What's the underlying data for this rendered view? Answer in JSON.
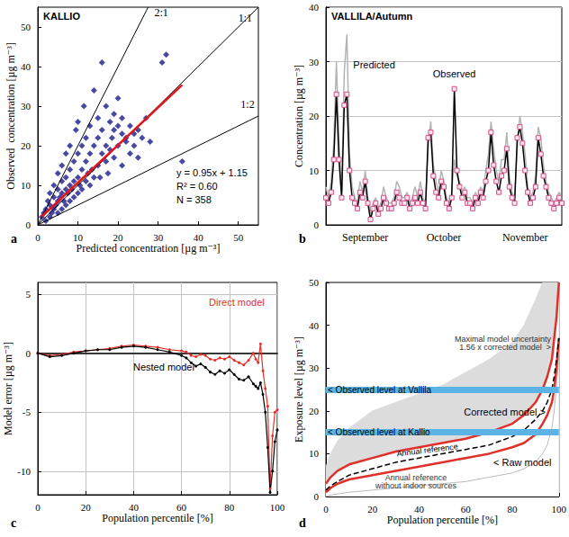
{
  "chart_data": [
    {
      "type": "scatter",
      "title": "KALLIO",
      "panel_label": "a",
      "x_label": "Predicted concentration [µg m⁻³]",
      "y_label": "Observed  concentration [µg m⁻³]",
      "xlim": [
        0,
        55
      ],
      "ylim": [
        0,
        55
      ],
      "xticks": [
        0,
        10,
        20,
        30,
        40,
        50
      ],
      "yticks": [
        0,
        10,
        20,
        30,
        40,
        50
      ],
      "grid": false,
      "points": {
        "marker": "diamond",
        "color": "#1c1c8a",
        "values": [
          [
            1,
            2
          ],
          [
            1.5,
            3
          ],
          [
            2,
            1
          ],
          [
            2,
            4
          ],
          [
            2.5,
            6
          ],
          [
            3,
            2
          ],
          [
            3,
            5
          ],
          [
            3,
            8
          ],
          [
            3.5,
            3
          ],
          [
            4,
            4
          ],
          [
            4,
            7
          ],
          [
            4,
            10
          ],
          [
            4.5,
            5
          ],
          [
            5,
            3
          ],
          [
            5,
            6
          ],
          [
            5,
            9
          ],
          [
            5,
            13
          ],
          [
            5.5,
            7
          ],
          [
            6,
            4
          ],
          [
            6,
            8
          ],
          [
            6,
            11
          ],
          [
            6,
            15
          ],
          [
            6.5,
            6
          ],
          [
            7,
            5
          ],
          [
            7,
            9
          ],
          [
            7,
            12
          ],
          [
            7,
            18
          ],
          [
            7.5,
            8
          ],
          [
            8,
            6
          ],
          [
            8,
            10
          ],
          [
            8,
            14
          ],
          [
            8,
            20
          ],
          [
            8.5,
            9
          ],
          [
            9,
            7
          ],
          [
            9,
            11
          ],
          [
            9,
            16
          ],
          [
            9.5,
            24
          ],
          [
            10,
            8
          ],
          [
            10,
            12
          ],
          [
            10,
            18
          ],
          [
            10,
            26
          ],
          [
            10.5,
            10
          ],
          [
            11,
            9
          ],
          [
            11,
            14
          ],
          [
            11,
            20
          ],
          [
            11.5,
            30
          ],
          [
            12,
            11
          ],
          [
            12,
            16
          ],
          [
            12,
            22
          ],
          [
            12.5,
            13
          ],
          [
            13,
            10
          ],
          [
            13,
            18
          ],
          [
            13,
            25
          ],
          [
            13.5,
            14
          ],
          [
            14,
            12
          ],
          [
            14,
            20
          ],
          [
            14,
            34
          ],
          [
            15,
            15
          ],
          [
            15,
            22
          ],
          [
            15,
            27
          ],
          [
            15.5,
            12
          ],
          [
            16,
            18
          ],
          [
            16,
            24
          ],
          [
            16,
            41
          ],
          [
            17,
            16
          ],
          [
            17,
            20
          ],
          [
            17,
            30
          ],
          [
            17.5,
            13
          ],
          [
            18,
            19
          ],
          [
            18,
            26
          ],
          [
            18.5,
            22
          ],
          [
            19,
            17
          ],
          [
            19,
            24
          ],
          [
            19,
            28
          ],
          [
            20,
            20
          ],
          [
            20,
            25
          ],
          [
            20,
            32
          ],
          [
            21,
            15
          ],
          [
            21,
            23
          ],
          [
            21,
            27
          ],
          [
            22,
            22
          ],
          [
            22,
            21
          ],
          [
            23,
            18
          ],
          [
            23,
            25
          ],
          [
            24,
            20
          ],
          [
            24,
            23
          ],
          [
            25,
            17
          ],
          [
            25,
            24
          ],
          [
            26,
            22
          ],
          [
            27,
            27
          ],
          [
            28,
            21
          ],
          [
            31,
            41
          ],
          [
            32,
            43
          ],
          [
            36,
            16
          ]
        ]
      },
      "reference_lines": [
        {
          "label": "2:1",
          "x": [
            0,
            27.5
          ],
          "y": [
            0,
            55
          ],
          "color": "#000000"
        },
        {
          "label": "1:1",
          "x": [
            0,
            55
          ],
          "y": [
            0,
            55
          ],
          "color": "#000000"
        },
        {
          "label": "1:2",
          "x": [
            0,
            55
          ],
          "y": [
            0,
            27.5
          ],
          "color": "#000000"
        }
      ],
      "fit": {
        "label": "y = 0.95x + 1.15",
        "x": [
          1,
          36
        ],
        "y": [
          2.1,
          35.35
        ],
        "color": "#e3141c"
      },
      "annotations": [
        "R² = 0.60",
        "N = 358"
      ]
    },
    {
      "type": "line",
      "title": "VALLILA/Autumn",
      "panel_label": "b",
      "y_label": "Concentration [µg m⁻³]",
      "categories": [
        null,
        null,
        null,
        null,
        null,
        null,
        null,
        null,
        null,
        null,
        null,
        null,
        null,
        null,
        null,
        "September",
        null,
        null,
        null,
        null,
        null,
        null,
        null,
        null,
        null,
        null,
        null,
        null,
        null,
        null,
        null,
        null,
        null,
        null,
        null,
        null,
        null,
        null,
        null,
        null,
        null,
        null,
        null,
        null,
        null,
        "October",
        null,
        null,
        null,
        null,
        null,
        null,
        null,
        null,
        null,
        null,
        null,
        null,
        null,
        null,
        null,
        null,
        null,
        null,
        null,
        null,
        null,
        null,
        null,
        null,
        null,
        null,
        null,
        null,
        null,
        null,
        "November",
        null,
        null,
        null,
        null,
        null,
        null,
        null,
        null,
        null,
        null,
        null,
        null,
        null,
        null
      ],
      "ylim": [
        0,
        40
      ],
      "yticks": [
        0,
        10,
        20,
        30,
        40
      ],
      "grid": true,
      "series": [
        {
          "name": "Predicted",
          "color": "#b4b4b4",
          "values": [
            7,
            5,
            8,
            15,
            30,
            15,
            6,
            28,
            35,
            13,
            7,
            5,
            4,
            8,
            6,
            10,
            5,
            2,
            4,
            5,
            3,
            4,
            7,
            5,
            4,
            4,
            5,
            8,
            7,
            5,
            5,
            6,
            4,
            5,
            7,
            5,
            8,
            5,
            4,
            14,
            19,
            11,
            8,
            6,
            10,
            8,
            5,
            4,
            6,
            12,
            9,
            8,
            6,
            7,
            5,
            5,
            4,
            6,
            5,
            7,
            6,
            10,
            13,
            19,
            14,
            10,
            8,
            12,
            12,
            17,
            9,
            6,
            5,
            14,
            20,
            17,
            13,
            7,
            5,
            6,
            9,
            18,
            16,
            11,
            8,
            6,
            5,
            4,
            5,
            6,
            5
          ]
        },
        {
          "name": "Observed",
          "color": "#000000",
          "marker": "square",
          "values": [
            5,
            4,
            6,
            12,
            24,
            12,
            5,
            22,
            24,
            10,
            5,
            4,
            3,
            6,
            5,
            8,
            4,
            1,
            3,
            4,
            2,
            3,
            5,
            4,
            3,
            3,
            4,
            6,
            5,
            4,
            4,
            5,
            3,
            4,
            5,
            4,
            6,
            4,
            3,
            16,
            17,
            9,
            6,
            5,
            8,
            7,
            4,
            3,
            5,
            25,
            10,
            7,
            5,
            6,
            4,
            4,
            3,
            5,
            4,
            6,
            5,
            8,
            10,
            17,
            11,
            8,
            6,
            9,
            10,
            14,
            7,
            5,
            4,
            16,
            18,
            15,
            10,
            6,
            4,
            5,
            7,
            16,
            13,
            9,
            7,
            5,
            4,
            3,
            4,
            5,
            4
          ]
        }
      ]
    },
    {
      "type": "line",
      "panel_label": "c",
      "x_label": "Population percentile [%]",
      "y_label": "Model error [µg m⁻³]",
      "x": [
        0,
        5,
        10,
        15,
        20,
        25,
        30,
        35,
        40,
        45,
        50,
        55,
        60,
        62,
        64,
        66,
        68,
        70,
        72,
        74,
        76,
        78,
        80,
        82,
        84,
        86,
        88,
        90,
        91,
        92,
        93,
        94,
        95,
        96,
        97,
        98,
        99,
        100
      ],
      "xlim": [
        0,
        100
      ],
      "ylim": [
        -12,
        6
      ],
      "xticks": [
        0,
        20,
        40,
        60,
        80,
        100
      ],
      "yticks": [
        -10,
        -5,
        0,
        5
      ],
      "grid": true,
      "series": [
        {
          "name": "Direct model",
          "color": "#e0302a",
          "marker": "circle",
          "values": [
            0,
            -0.2,
            -0.1,
            0.1,
            0.2,
            0.3,
            0.4,
            0.6,
            0.7,
            0.6,
            0.5,
            0.3,
            0.2,
            0.1,
            -0.2,
            -0.3,
            -0.1,
            -0.2,
            -0.5,
            -0.6,
            -0.4,
            -0.5,
            -0.3,
            -0.6,
            -0.8,
            -1.0,
            -0.6,
            0.0,
            -0.5,
            -0.8,
            0.8,
            -1.5,
            -3.0,
            -4.5,
            -11.5,
            -7.0,
            -5.0,
            -4.8
          ]
        },
        {
          "name": "Nested model",
          "color": "#000000",
          "marker": "circle",
          "values": [
            0,
            -0.3,
            -0.2,
            0.0,
            0.2,
            0.3,
            0.3,
            0.5,
            0.6,
            0.5,
            0.3,
            0.1,
            -0.2,
            -0.4,
            -0.8,
            -1.1,
            -0.9,
            -1.2,
            -1.6,
            -1.8,
            -1.5,
            -1.7,
            -1.4,
            -1.8,
            -2.2,
            -2.3,
            -2.0,
            -2.6,
            -2.8,
            -3.0,
            -2.5,
            -3.5,
            -5.0,
            -8.0,
            -11.8,
            -10.0,
            -7.5,
            -6.5
          ]
        }
      ]
    },
    {
      "type": "line",
      "panel_label": "d",
      "x_label": "Population percentile [%]",
      "y_label": "Exposure level [µg m⁻³]",
      "x": [
        0,
        2,
        5,
        10,
        20,
        30,
        40,
        50,
        60,
        70,
        80,
        85,
        90,
        93,
        95,
        97,
        98,
        99,
        100
      ],
      "xlim": [
        0,
        100
      ],
      "ylim": [
        0,
        50
      ],
      "xticks": [
        0,
        20,
        40,
        60,
        80,
        100
      ],
      "yticks": [
        0,
        10,
        20,
        30,
        40,
        50
      ],
      "grid": false,
      "series": [
        {
          "name": "Maximal model uncertainty\n1.56 x corrected model  >",
          "type": "area",
          "color": "#dcdcdc",
          "values": [
            7,
            10,
            13,
            16,
            20,
            22,
            24,
            26,
            29,
            32,
            36,
            40,
            46,
            50,
            50,
            50,
            50,
            50,
            50
          ]
        },
        {
          "name": "Corrected model >",
          "color": "#e0302a",
          "values": [
            3,
            4.5,
            6,
            7.5,
            9,
            10.5,
            11.5,
            12.5,
            13.5,
            15,
            17,
            19,
            22,
            25,
            28,
            32,
            37,
            42,
            50
          ]
        },
        {
          "name": "Annual reference\nwithout indoor sources",
          "type": "area",
          "color": "#a9a9a9",
          "values": [
            0,
            0.3,
            0.6,
            1,
            1.5,
            2,
            2.5,
            3,
            3.5,
            4.5,
            5.5,
            6.5,
            8,
            10,
            12,
            16,
            20,
            26,
            33
          ]
        },
        {
          "name": "< Raw model",
          "color": "#e0302a",
          "values": [
            1,
            2,
            3,
            4,
            5,
            6,
            7,
            8,
            9,
            10,
            11.5,
            12.5,
            14.5,
            17,
            19,
            22,
            25,
            30,
            37
          ]
        },
        {
          "name": "Annual reference",
          "color": "#000000",
          "line_style": "dashed",
          "values": [
            1.5,
            2.5,
            3.5,
            5,
            6.5,
            8,
            9,
            10,
            11,
            12,
            14,
            15.5,
            18,
            20,
            22,
            25,
            28,
            32,
            37
          ]
        }
      ],
      "observed_levels": [
        {
          "label": "< Observed level at Vallila",
          "value": 25,
          "color": "#5bb4e5"
        },
        {
          "label": "< Observed level at Kallio",
          "value": 15,
          "color": "#5bb4e5"
        }
      ]
    }
  ]
}
